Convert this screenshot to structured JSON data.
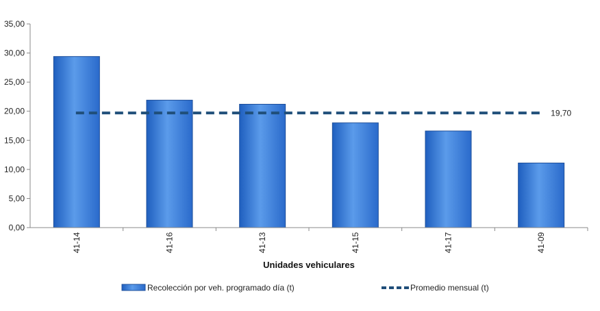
{
  "chart_data": {
    "type": "bar",
    "categories": [
      "41-14",
      "41-16",
      "41-13",
      "41-15",
      "41-17",
      "41-09"
    ],
    "series": [
      {
        "name": "Recolección por veh. programado día (t)",
        "type": "bar",
        "values": [
          29.4,
          21.9,
          21.2,
          18.0,
          16.6,
          11.1
        ],
        "color": "#3a7bd5"
      },
      {
        "name": "Promedio mensual (t)",
        "type": "line",
        "style": "dashed",
        "values": [
          19.7,
          19.7,
          19.7,
          19.7,
          19.7,
          19.7
        ],
        "color": "#1f4e79"
      }
    ],
    "average_label": "19,70",
    "xlabel": "Unidades vehiculares",
    "ylabel": "",
    "ylim": [
      0,
      35
    ],
    "yticks": [
      "0,00",
      "5,00",
      "10,00",
      "15,00",
      "20,00",
      "25,00",
      "30,00",
      "35,00"
    ],
    "ytick_values": [
      0,
      5,
      10,
      15,
      20,
      25,
      30,
      35
    ],
    "legend_position": "bottom",
    "grid": false
  }
}
